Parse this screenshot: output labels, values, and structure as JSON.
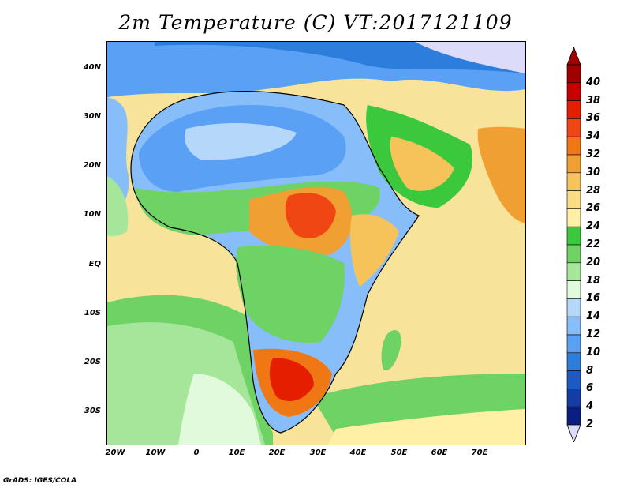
{
  "title": "2m Temperature (C) VT:2017121109",
  "credit": "GrADS: IGES/COLA",
  "map": {
    "lon_range": [
      -25,
      80
    ],
    "lat_range": [
      -37,
      45
    ],
    "lat_ticks": [
      {
        "value": 40,
        "label": "40N"
      },
      {
        "value": 30,
        "label": "30N"
      },
      {
        "value": 20,
        "label": "20N"
      },
      {
        "value": 10,
        "label": "10N"
      },
      {
        "value": 0,
        "label": "EQ"
      },
      {
        "value": -10,
        "label": "10S"
      },
      {
        "value": -20,
        "label": "20S"
      },
      {
        "value": -30,
        "label": "30S"
      }
    ],
    "lon_ticks": [
      {
        "value": -20,
        "label": "20W"
      },
      {
        "value": -10,
        "label": "10W"
      },
      {
        "value": 0,
        "label": "0"
      },
      {
        "value": 10,
        "label": "10E"
      },
      {
        "value": 20,
        "label": "20E"
      },
      {
        "value": 30,
        "label": "30E"
      },
      {
        "value": 40,
        "label": "40E"
      },
      {
        "value": 50,
        "label": "50E"
      },
      {
        "value": 60,
        "label": "60E"
      },
      {
        "value": 70,
        "label": "70E"
      }
    ]
  },
  "colorbar": {
    "labels": [
      "40",
      "38",
      "36",
      "34",
      "32",
      "30",
      "28",
      "26",
      "24",
      "22",
      "20",
      "18",
      "16",
      "14",
      "12",
      "10",
      "8",
      "6",
      "4",
      "2"
    ],
    "colors": [
      "#a00000",
      "#c80000",
      "#e61e00",
      "#f04614",
      "#f07814",
      "#f0a032",
      "#f5c35a",
      "#fadc82",
      "#fff0a5",
      "#3cc83c",
      "#6ed264",
      "#a5e69b",
      "#e1fadc",
      "#b4d7fa",
      "#87befa",
      "#5aa0f5",
      "#2d7ddc",
      "#1e5ac3",
      "#143ca5",
      "#0a1e82"
    ],
    "top_color": "#a00000",
    "bottom_color": "#dcdcfa"
  }
}
